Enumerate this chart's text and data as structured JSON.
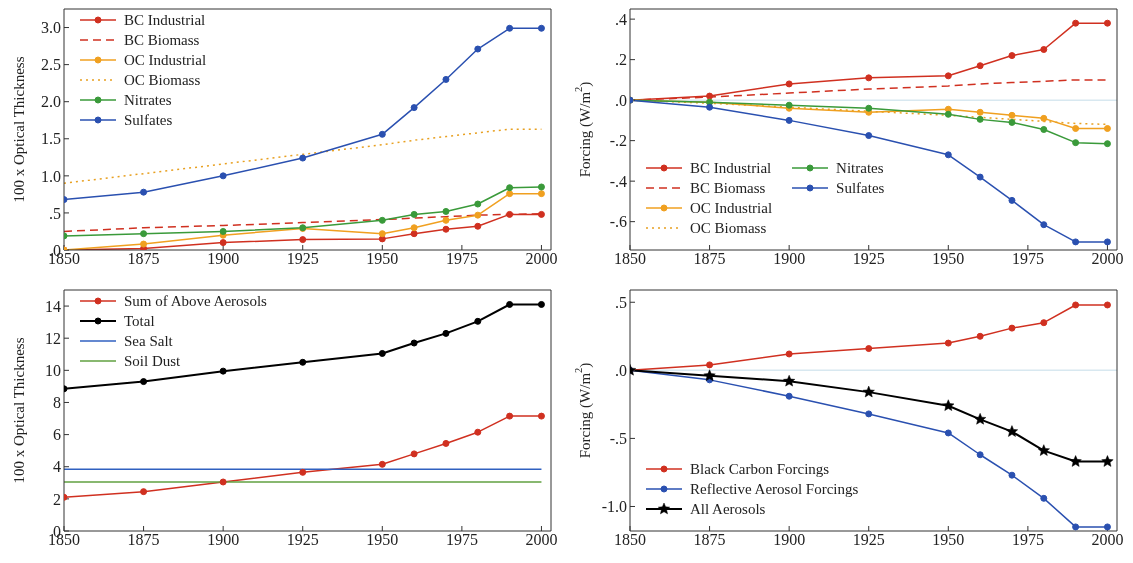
{
  "chart_data": [
    {
      "type": "line",
      "ylabel": "100 x Optical Thickness",
      "x": [
        1850,
        1875,
        1900,
        1925,
        1950,
        1960,
        1970,
        1980,
        1990,
        2000
      ],
      "xlim": [
        1850,
        2003
      ],
      "xticks": [
        1850,
        1875,
        1900,
        1925,
        1950,
        1975,
        2000
      ],
      "ylim": [
        0,
        3.25
      ],
      "yticks": [
        {
          "value": 0,
          "label": ".0"
        },
        {
          "value": 0.5,
          "label": ".5"
        },
        {
          "value": 1,
          "label": "1.0"
        },
        {
          "value": 1.5,
          "label": "1.5"
        },
        {
          "value": 2,
          "label": "2.0"
        },
        {
          "value": 2.5,
          "label": "2.5"
        },
        {
          "value": 3,
          "label": "3.0"
        }
      ],
      "legend": "top left",
      "grid": false,
      "series": [
        {
          "name": "BC Industrial",
          "color": "#d03020",
          "marker": "circle",
          "line_style": "solid",
          "values": [
            0,
            0.02,
            0.1,
            0.14,
            0.15,
            0.22,
            0.28,
            0.32,
            0.48,
            0.48
          ]
        },
        {
          "name": "BC Biomass",
          "color": "#d03020",
          "marker": "none",
          "line_style": "dashed",
          "values": [
            0.25,
            0.3,
            0.33,
            0.37,
            0.41,
            0.43,
            0.45,
            0.47,
            0.48,
            0.49
          ]
        },
        {
          "name": "OC Industrial",
          "color": "#f0a020",
          "marker": "circle",
          "line_style": "solid",
          "values": [
            0,
            0.08,
            0.2,
            0.29,
            0.22,
            0.3,
            0.4,
            0.47,
            0.76,
            0.76
          ]
        },
        {
          "name": "OC Biomass",
          "color": "#e8a020",
          "marker": "none",
          "line_style": "dotted",
          "values": [
            0.9,
            1.03,
            1.16,
            1.29,
            1.42,
            1.48,
            1.53,
            1.58,
            1.63,
            1.63
          ]
        },
        {
          "name": "Nitrates",
          "color": "#3a9a3a",
          "marker": "circle",
          "line_style": "solid",
          "values": [
            0.19,
            0.22,
            0.25,
            0.3,
            0.4,
            0.48,
            0.52,
            0.62,
            0.84,
            0.85
          ]
        },
        {
          "name": "Sulfates",
          "color": "#2a50b0",
          "marker": "circle",
          "line_style": "solid",
          "values": [
            0.68,
            0.78,
            1.0,
            1.24,
            1.56,
            1.92,
            2.3,
            2.71,
            2.99,
            2.99
          ]
        }
      ]
    },
    {
      "type": "line",
      "ylabel": "Forcing (W/m$^{2}$)",
      "x": [
        1850,
        1875,
        1900,
        1925,
        1950,
        1960,
        1970,
        1980,
        1990,
        2000
      ],
      "xlim": [
        1850,
        2003
      ],
      "xticks": [
        1850,
        1875,
        1900,
        1925,
        1950,
        1975,
        2000
      ],
      "ylim": [
        -0.74,
        0.45
      ],
      "yticks": [
        {
          "value": -0.6,
          "label": "-.6"
        },
        {
          "value": -0.4,
          "label": "-.4"
        },
        {
          "value": -0.2,
          "label": "-.2"
        },
        {
          "value": 0,
          "label": ".0"
        },
        {
          "value": 0.2,
          "label": ".2"
        },
        {
          "value": 0.4,
          "label": ".4"
        }
      ],
      "legend": "bottom left",
      "grid": false,
      "ref_lines": [
        {
          "axis": "y",
          "value": 0,
          "color": "#d8e8f0"
        }
      ],
      "series": [
        {
          "name": "BC Industrial",
          "color": "#d03020",
          "marker": "circle",
          "line_style": "solid",
          "values": [
            0,
            0.02,
            0.08,
            0.11,
            0.12,
            0.17,
            0.22,
            0.25,
            0.38,
            0.38
          ]
        },
        {
          "name": "BC Biomass",
          "color": "#d03020",
          "marker": "none",
          "line_style": "dashed",
          "values": [
            0,
            0.015,
            0.035,
            0.055,
            0.07,
            0.08,
            0.087,
            0.093,
            0.1,
            0.1
          ]
        },
        {
          "name": "OC Industrial",
          "color": "#f0a020",
          "marker": "circle",
          "line_style": "solid",
          "values": [
            0,
            -0.01,
            -0.04,
            -0.06,
            -0.045,
            -0.06,
            -0.075,
            -0.09,
            -0.14,
            -0.14
          ]
        },
        {
          "name": "OC Biomass",
          "color": "#e8a020",
          "marker": "none",
          "line_style": "dotted",
          "values": [
            0,
            -0.015,
            -0.035,
            -0.055,
            -0.075,
            -0.085,
            -0.095,
            -0.105,
            -0.115,
            -0.12
          ]
        },
        {
          "name": "Nitrates",
          "color": "#3a9a3a",
          "marker": "circle",
          "line_style": "solid",
          "values": [
            0,
            -0.01,
            -0.025,
            -0.04,
            -0.07,
            -0.095,
            -0.11,
            -0.145,
            -0.21,
            -0.215
          ]
        },
        {
          "name": "Sulfates",
          "color": "#2a50b0",
          "marker": "circle",
          "line_style": "solid",
          "values": [
            0,
            -0.035,
            -0.1,
            -0.175,
            -0.27,
            -0.38,
            -0.495,
            -0.615,
            -0.7,
            -0.7
          ]
        }
      ]
    },
    {
      "type": "line",
      "ylabel": "100 x Optical Thickness",
      "x": [
        1850,
        1875,
        1900,
        1925,
        1950,
        1960,
        1970,
        1980,
        1990,
        2000
      ],
      "xlim": [
        1850,
        2003
      ],
      "xticks": [
        1850,
        1875,
        1900,
        1925,
        1950,
        1975,
        2000
      ],
      "ylim": [
        0,
        15
      ],
      "yticks": [
        0,
        2,
        4,
        6,
        8,
        10,
        12,
        14
      ],
      "legend": "top left",
      "grid": false,
      "series": [
        {
          "name": "Sum of Above Aerosols",
          "color": "#d03020",
          "marker": "circle",
          "line_style": "solid",
          "values": [
            2.1,
            2.45,
            3.05,
            3.65,
            4.15,
            4.8,
            5.45,
            6.15,
            7.15,
            7.15
          ]
        },
        {
          "name": "Total",
          "color": "#000000",
          "marker": "circle",
          "line_style": "solid",
          "values": [
            8.85,
            9.3,
            9.95,
            10.5,
            11.05,
            11.7,
            12.3,
            13.05,
            14.1,
            14.1
          ]
        },
        {
          "name": "Sea Salt",
          "color": "#3060c0",
          "marker": "none",
          "line_style": "solid",
          "values": [
            3.85,
            3.85,
            3.85,
            3.85,
            3.85,
            3.85,
            3.85,
            3.85,
            3.85,
            3.85
          ]
        },
        {
          "name": "Soil Dust",
          "color": "#60a040",
          "marker": "none",
          "line_style": "solid",
          "values": [
            3.05,
            3.05,
            3.05,
            3.05,
            3.05,
            3.05,
            3.05,
            3.05,
            3.05,
            3.05
          ]
        }
      ]
    },
    {
      "type": "line",
      "ylabel": "Forcing (W/m$^{2}$)",
      "x": [
        1850,
        1875,
        1900,
        1925,
        1950,
        1960,
        1970,
        1980,
        1990,
        2000
      ],
      "xlim": [
        1850,
        2003
      ],
      "xticks": [
        1850,
        1875,
        1900,
        1925,
        1950,
        1975,
        2000
      ],
      "ylim": [
        -1.18,
        0.59
      ],
      "yticks": [
        {
          "value": -1,
          "label": "-1.0"
        },
        {
          "value": -0.5,
          "label": "-.5"
        },
        {
          "value": 0,
          "label": ".0"
        },
        {
          "value": 0.5,
          "label": ".5"
        }
      ],
      "legend": "bottom left",
      "grid": false,
      "ref_lines": [
        {
          "axis": "y",
          "value": 0,
          "color": "#d8e8f0"
        }
      ],
      "series": [
        {
          "name": "Black Carbon Forcings",
          "color": "#d03020",
          "marker": "circle",
          "line_style": "solid",
          "values": [
            0,
            0.04,
            0.12,
            0.16,
            0.2,
            0.25,
            0.31,
            0.35,
            0.48,
            0.48
          ]
        },
        {
          "name": "Reflective Aerosol Forcings",
          "color": "#2a50b0",
          "marker": "circle",
          "line_style": "solid",
          "values": [
            0,
            -0.07,
            -0.19,
            -0.32,
            -0.46,
            -0.62,
            -0.77,
            -0.94,
            -1.15,
            -1.15
          ]
        },
        {
          "name": "All Aerosols",
          "color": "#000000",
          "marker": "star",
          "line_style": "solid",
          "values": [
            0,
            -0.04,
            -0.08,
            -0.16,
            -0.26,
            -0.36,
            -0.45,
            -0.59,
            -0.67,
            -0.67
          ]
        }
      ]
    }
  ]
}
